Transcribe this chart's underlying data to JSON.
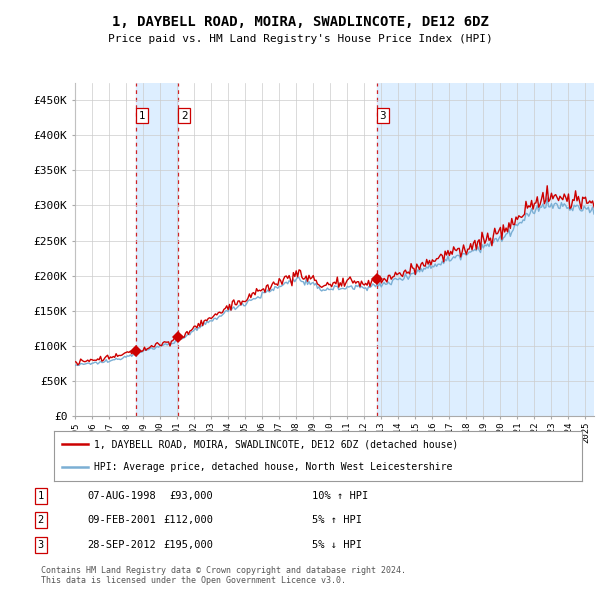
{
  "title": "1, DAYBELL ROAD, MOIRA, SWADLINCOTE, DE12 6DZ",
  "subtitle": "Price paid vs. HM Land Registry's House Price Index (HPI)",
  "ylim": [
    0,
    475000
  ],
  "yticks": [
    0,
    50000,
    100000,
    150000,
    200000,
    250000,
    300000,
    350000,
    400000,
    450000
  ],
  "ytick_labels": [
    "£0",
    "£50K",
    "£100K",
    "£150K",
    "£200K",
    "£250K",
    "£300K",
    "£350K",
    "£400K",
    "£450K"
  ],
  "sale_color": "#cc0000",
  "hpi_color": "#7bafd4",
  "hpi_shade_color": "#ddeeff",
  "vline_color": "#cc0000",
  "background_color": "#ffffff",
  "grid_color": "#cccccc",
  "sales": [
    {
      "date": 1998.58,
      "price": 93000,
      "label": "1"
    },
    {
      "date": 2001.08,
      "price": 112000,
      "label": "2"
    },
    {
      "date": 2012.75,
      "price": 195000,
      "label": "3"
    }
  ],
  "sale_table": [
    {
      "num": "1",
      "date": "07-AUG-1998",
      "price": "£93,000",
      "hpi": "10% ↑ HPI"
    },
    {
      "num": "2",
      "date": "09-FEB-2001",
      "price": "£112,000",
      "hpi": "5% ↑ HPI"
    },
    {
      "num": "3",
      "date": "28-SEP-2012",
      "price": "£195,000",
      "hpi": "5% ↓ HPI"
    }
  ],
  "legend_line1": "1, DAYBELL ROAD, MOIRA, SWADLINCOTE, DE12 6DZ (detached house)",
  "legend_line2": "HPI: Average price, detached house, North West Leicestershire",
  "footer": "Contains HM Land Registry data © Crown copyright and database right 2024.\nThis data is licensed under the Open Government Licence v3.0.",
  "xmin": 1995,
  "xmax": 2025.5
}
